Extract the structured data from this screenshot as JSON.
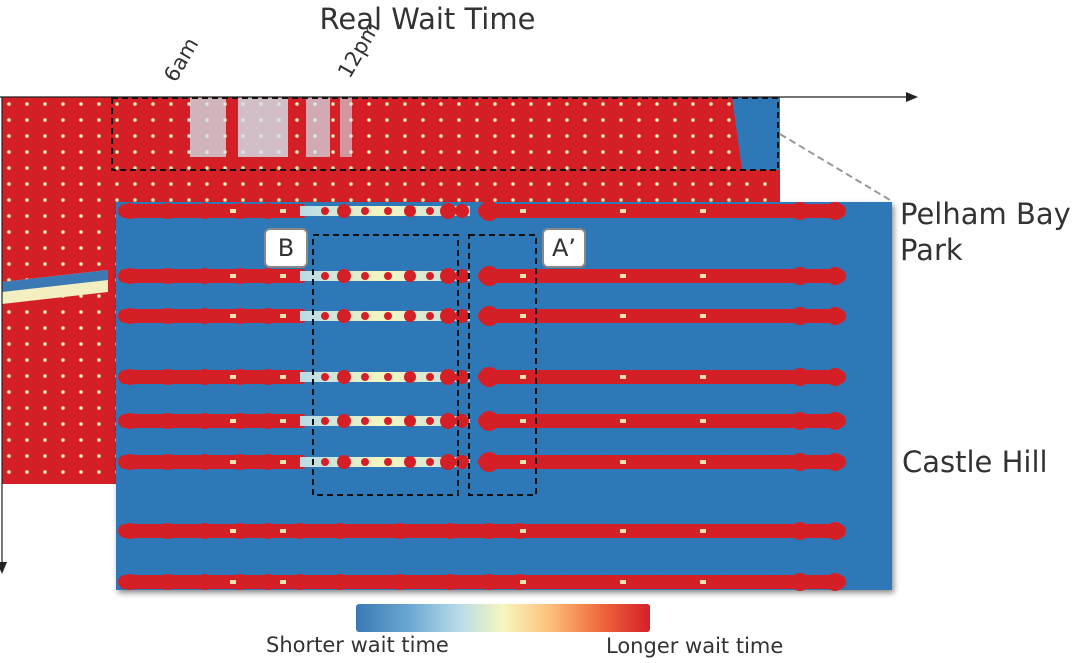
{
  "title": "Real Wait Time",
  "time_ticks": [
    "6am",
    "12pm"
  ],
  "stations": {
    "top": "Pelham Bay\nPark",
    "bottom": "Castle Hill"
  },
  "badges": {
    "b": "B",
    "a": "A’"
  },
  "legend": {
    "short": "Shorter wait time",
    "long": "Longer wait time"
  },
  "colors": {
    "short": "#3a79b4",
    "long": "#d51f27",
    "mid": "#f6f7bf"
  }
}
